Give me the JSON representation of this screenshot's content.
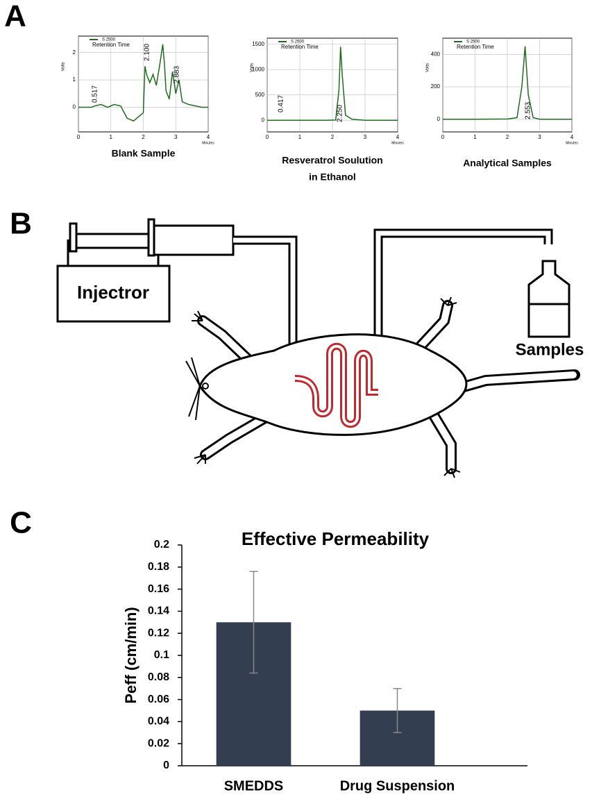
{
  "panel_labels": [
    "A",
    "B",
    "C"
  ],
  "diagram": {
    "injector_label": "Injectror",
    "samples_label": "Samples"
  },
  "chart_data": [
    {
      "type": "line",
      "caption": [
        "Blank Sample"
      ],
      "ylabel": "Volts",
      "xlabel": "Minutes",
      "legend_subtitle": "Retention Time",
      "annotations": [
        "0.517",
        "2.100",
        "2.883"
      ],
      "xlim": [
        0,
        4
      ],
      "ylim": [
        -0.9,
        2.6
      ],
      "xticks": [
        0,
        1,
        2,
        3,
        4
      ],
      "yticks": [
        0,
        1,
        2
      ],
      "x": [
        0,
        0.4,
        0.5,
        0.7,
        0.9,
        1.1,
        1.3,
        1.5,
        1.7,
        1.9,
        2.0,
        2.05,
        2.1,
        2.2,
        2.3,
        2.4,
        2.5,
        2.6,
        2.65,
        2.7,
        2.8,
        2.9,
        3.0,
        3.1,
        3.2,
        3.4,
        3.6,
        3.8,
        4.0
      ],
      "series": [
        {
          "name": "S 2500",
          "color": "#1e6b1e",
          "values": [
            0,
            0,
            0.05,
            0.1,
            0.0,
            0.1,
            0.05,
            -0.4,
            -0.5,
            -0.3,
            -0.2,
            1.5,
            1.2,
            0.9,
            1.2,
            0.8,
            1.5,
            2.3,
            1.6,
            0.6,
            0.3,
            1.3,
            0.5,
            1.0,
            0.2,
            0.1,
            0.05,
            0.0,
            0.0
          ]
        }
      ]
    },
    {
      "type": "line",
      "caption": [
        "Resveratrol Soulution",
        "in Ethanol"
      ],
      "ylabel": "Volts",
      "xlabel": "Minutes",
      "legend_subtitle": "Retention Time",
      "annotations": [
        "0.417",
        "2.250"
      ],
      "xlim": [
        0,
        4
      ],
      "ylim": [
        -230,
        1620
      ],
      "xticks": [
        0,
        1,
        2,
        3,
        4
      ],
      "yticks": [
        0,
        500,
        1000,
        1500
      ],
      "x": [
        0,
        1,
        1.8,
        2.1,
        2.2,
        2.25,
        2.3,
        2.4,
        2.6,
        3,
        4
      ],
      "series": [
        {
          "name": "S 2500",
          "color": "#1e6b1e",
          "values": [
            0,
            0,
            0,
            5,
            600,
            1450,
            900,
            100,
            20,
            0,
            0
          ]
        }
      ]
    },
    {
      "type": "line",
      "caption": [
        "Analytical Samples"
      ],
      "ylabel": "Volts",
      "xlabel": "Minutes",
      "legend_subtitle": "Retention Time",
      "annotations": [
        "2.553"
      ],
      "xlim": [
        0,
        4
      ],
      "ylim": [
        -78,
        500
      ],
      "xticks": [
        0,
        1,
        2,
        3,
        4
      ],
      "yticks": [
        0,
        200,
        400
      ],
      "x": [
        0,
        1,
        2,
        2.3,
        2.45,
        2.55,
        2.65,
        2.8,
        3,
        4
      ],
      "series": [
        {
          "name": "S 2500",
          "color": "#1e6b1e",
          "values": [
            0,
            0,
            2,
            10,
            200,
            450,
            150,
            10,
            0,
            0
          ]
        }
      ]
    },
    {
      "type": "bar",
      "title": "Effective Permeability",
      "ylabel": "Peff (cm/min)",
      "categories": [
        "SMEDDS",
        "Drug Suspension"
      ],
      "values": [
        0.13,
        0.05
      ],
      "errors": [
        0.046,
        0.02
      ],
      "color": "#333f50",
      "ylim": [
        0,
        0.2
      ],
      "yticks": [
        0,
        0.02,
        0.04,
        0.06,
        0.08,
        0.1,
        0.12,
        0.14,
        0.16,
        0.18,
        0.2
      ]
    }
  ]
}
